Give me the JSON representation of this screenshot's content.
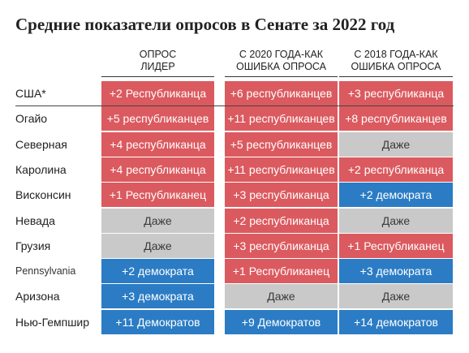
{
  "title": "Средние показатели опросов в Сенате за 2022 год",
  "colors": {
    "republican": "#db5a5f",
    "democrat": "#2b7cc4",
    "even": "#c9c9c9"
  },
  "chart_data": {
    "type": "table",
    "columns": [
      {
        "lines": [
          "ОПРОС",
          "ЛИДЕР"
        ]
      },
      {
        "lines": [
          "С 2020 ГОДА-КАК",
          "ОШИБКА ОПРОСА"
        ]
      },
      {
        "lines": [
          "С 2018 ГОДА-КАК",
          "ОШИБКА ОПРОСА"
        ]
      }
    ],
    "rows": [
      {
        "label": "США*",
        "cells": [
          {
            "text": "+2 Республиканца",
            "party": "R"
          },
          {
            "text": "+6 республиканцев",
            "party": "R"
          },
          {
            "text": "+3 республиканца",
            "party": "R"
          }
        ]
      },
      {
        "label": "Огайо",
        "cells": [
          {
            "text": "+5 республиканцев",
            "party": "R"
          },
          {
            "text": "+11 республиканцев",
            "party": "R"
          },
          {
            "text": "+8 республиканцев",
            "party": "R"
          }
        ]
      },
      {
        "label": "Северная",
        "cells": [
          {
            "text": "+4 республиканца",
            "party": "R"
          },
          {
            "text": "+5 республиканцев",
            "party": "R"
          },
          {
            "text": "Даже",
            "party": "E"
          }
        ]
      },
      {
        "label": "Каролина",
        "cells": [
          {
            "text": "+4 республиканца",
            "party": "R"
          },
          {
            "text": "+11 республиканцев",
            "party": "R"
          },
          {
            "text": "+2 республиканца",
            "party": "R"
          }
        ]
      },
      {
        "label": "Висконсин",
        "cells": [
          {
            "text": "+1 Республиканец",
            "party": "R"
          },
          {
            "text": "+3 республиканца",
            "party": "R"
          },
          {
            "text": "+2 демократа",
            "party": "D"
          }
        ]
      },
      {
        "label": "Невада",
        "cells": [
          {
            "text": "Даже",
            "party": "E"
          },
          {
            "text": "+2 республиканца",
            "party": "R"
          },
          {
            "text": "Даже",
            "party": "E"
          }
        ]
      },
      {
        "label": "Грузия",
        "cells": [
          {
            "text": "Даже",
            "party": "E"
          },
          {
            "text": "+3 республиканца",
            "party": "R"
          },
          {
            "text": "+1 Республиканец",
            "party": "R"
          }
        ]
      },
      {
        "label": "Pennsylvania",
        "cells": [
          {
            "text": "+2 демократа",
            "party": "D"
          },
          {
            "text": "+1 Республиканец",
            "party": "R"
          },
          {
            "text": "+3 демократа",
            "party": "D"
          }
        ]
      },
      {
        "label": "Аризона",
        "cells": [
          {
            "text": "+3 демократа",
            "party": "D"
          },
          {
            "text": "Даже",
            "party": "E"
          },
          {
            "text": "Даже",
            "party": "E"
          }
        ]
      },
      {
        "label": "Нью-Гемпшир",
        "cells": [
          {
            "text": "+11 Демократов",
            "party": "D"
          },
          {
            "text": "+9 Демократов",
            "party": "D"
          },
          {
            "text": "+14 демократов",
            "party": "D"
          }
        ]
      }
    ]
  }
}
